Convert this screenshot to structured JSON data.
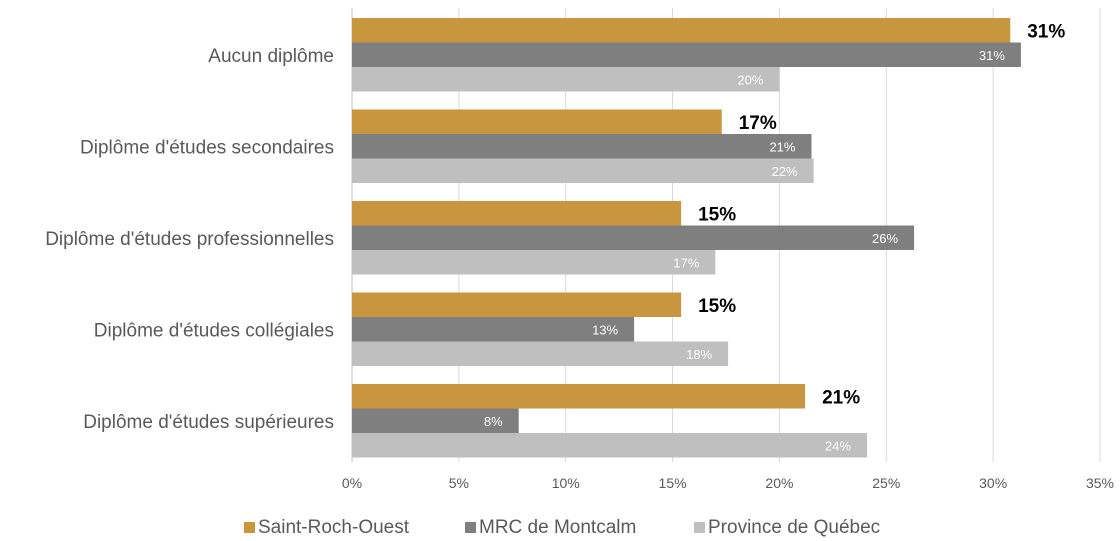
{
  "chart_data": {
    "type": "bar",
    "orientation": "horizontal",
    "categories": [
      "Aucun diplôme",
      "Diplôme d'études secondaires",
      "Diplôme d'études professionnelles",
      "Diplôme d'études collégiales",
      "Diplôme d'études supérieures"
    ],
    "series": [
      {
        "name": "Saint-Roch-Ouest",
        "color": "#C8963E",
        "values": [
          30.8,
          17.3,
          15.4,
          15.4,
          21.2
        ],
        "labels": [
          "31%",
          "17%",
          "15%",
          "15%",
          "21%"
        ]
      },
      {
        "name": "MRC de Montcalm",
        "color": "#7F7F7F",
        "values": [
          31.3,
          21.5,
          26.3,
          13.2,
          7.8
        ],
        "labels": [
          "31%",
          "21%",
          "26%",
          "13%",
          "8%"
        ]
      },
      {
        "name": "Province de Québec",
        "color": "#BFBFBF",
        "values": [
          20.0,
          21.6,
          17.0,
          17.6,
          24.1
        ],
        "labels": [
          "20%",
          "22%",
          "17%",
          "18%",
          "24%"
        ]
      }
    ],
    "xlim": [
      0,
      35
    ],
    "xticks": [
      "0%",
      "5%",
      "10%",
      "15%",
      "20%",
      "25%",
      "30%",
      "35%"
    ],
    "grid": true,
    "legend": "bottom",
    "title": "",
    "xlabel": "",
    "ylabel": ""
  }
}
